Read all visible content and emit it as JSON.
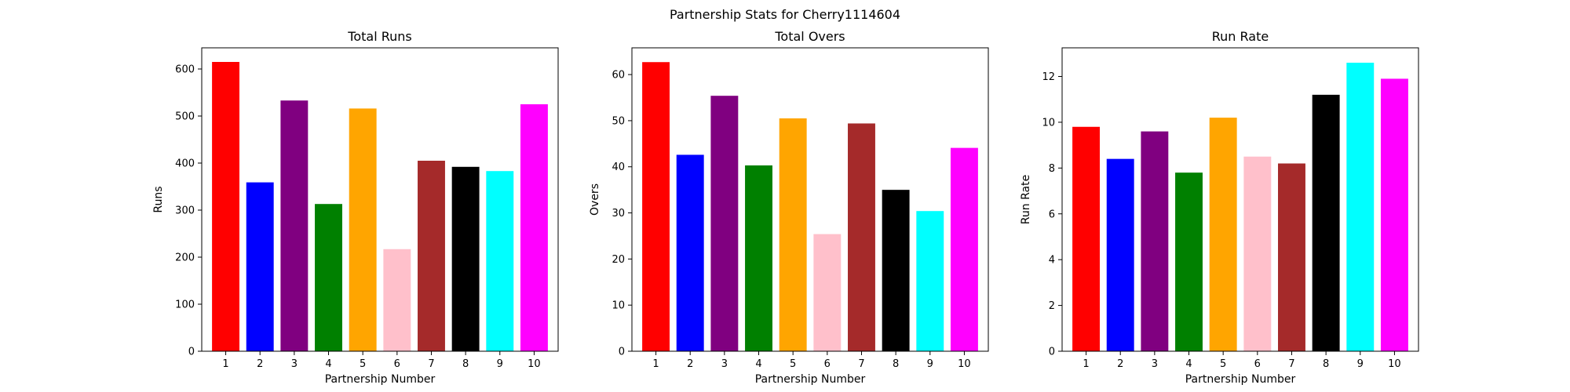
{
  "figure": {
    "suptitle": "Partnership Stats for Cherry1114604"
  },
  "chart_data": [
    {
      "type": "bar",
      "title": "Total Runs",
      "xlabel": "Partnership Number",
      "ylabel": "Runs",
      "categories": [
        "1",
        "2",
        "3",
        "4",
        "5",
        "6",
        "7",
        "8",
        "9",
        "10"
      ],
      "values": [
        615,
        359,
        533,
        313,
        516,
        217,
        405,
        392,
        383,
        525
      ],
      "colors": [
        "#ff0000",
        "#0000ff",
        "#800080",
        "#008000",
        "#ffa500",
        "#ffc0cb",
        "#a52a2a",
        "#000000",
        "#00ffff",
        "#ff00ff"
      ],
      "ylim": [
        0,
        645
      ],
      "yticks": [
        0,
        100,
        200,
        300,
        400,
        500,
        600
      ],
      "grid": false
    },
    {
      "type": "bar",
      "title": "Total Overs",
      "xlabel": "Partnership Number",
      "ylabel": "Overs",
      "categories": [
        "1",
        "2",
        "3",
        "4",
        "5",
        "6",
        "7",
        "8",
        "9",
        "10"
      ],
      "values": [
        62.7,
        42.6,
        55.4,
        40.3,
        50.5,
        25.4,
        49.4,
        35.0,
        30.4,
        44.1
      ],
      "colors": [
        "#ff0000",
        "#0000ff",
        "#800080",
        "#008000",
        "#ffa500",
        "#ffc0cb",
        "#a52a2a",
        "#000000",
        "#00ffff",
        "#ff00ff"
      ],
      "ylim": [
        0,
        65.8
      ],
      "yticks": [
        0,
        10,
        20,
        30,
        40,
        50,
        60
      ],
      "grid": false
    },
    {
      "type": "bar",
      "title": "Run Rate",
      "xlabel": "Partnership Number",
      "ylabel": "Run Rate",
      "categories": [
        "1",
        "2",
        "3",
        "4",
        "5",
        "6",
        "7",
        "8",
        "9",
        "10"
      ],
      "values": [
        9.8,
        8.4,
        9.6,
        7.8,
        10.2,
        8.5,
        8.2,
        11.2,
        12.6,
        11.9
      ],
      "colors": [
        "#ff0000",
        "#0000ff",
        "#800080",
        "#008000",
        "#ffa500",
        "#ffc0cb",
        "#a52a2a",
        "#000000",
        "#00ffff",
        "#ff00ff"
      ],
      "ylim": [
        0,
        13.25
      ],
      "yticks": [
        0,
        2,
        4,
        6,
        8,
        10,
        12
      ],
      "grid": false
    }
  ]
}
